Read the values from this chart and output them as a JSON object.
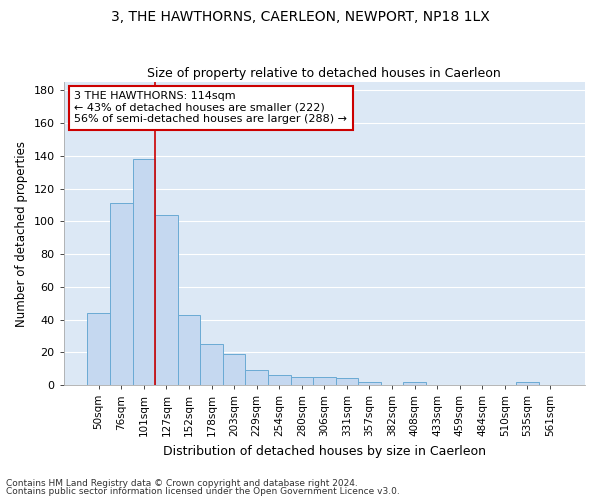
{
  "title1": "3, THE HAWTHORNS, CAERLEON, NEWPORT, NP18 1LX",
  "title2": "Size of property relative to detached houses in Caerleon",
  "xlabel": "Distribution of detached houses by size in Caerleon",
  "ylabel": "Number of detached properties",
  "footer1": "Contains HM Land Registry data © Crown copyright and database right 2024.",
  "footer2": "Contains public sector information licensed under the Open Government Licence v3.0.",
  "bar_labels": [
    "50sqm",
    "76sqm",
    "101sqm",
    "127sqm",
    "152sqm",
    "178sqm",
    "203sqm",
    "229sqm",
    "254sqm",
    "280sqm",
    "306sqm",
    "331sqm",
    "357sqm",
    "382sqm",
    "408sqm",
    "433sqm",
    "459sqm",
    "484sqm",
    "510sqm",
    "535sqm",
    "561sqm"
  ],
  "bar_values": [
    44,
    111,
    138,
    104,
    43,
    25,
    19,
    9,
    6,
    5,
    5,
    4,
    2,
    0,
    2,
    0,
    0,
    0,
    0,
    2,
    0
  ],
  "bar_color": "#c5d8f0",
  "bar_edge_color": "#6aaad4",
  "background_color": "#dce8f5",
  "grid_color": "#ffffff",
  "annotation_text": "3 THE HAWTHORNS: 114sqm\n← 43% of detached houses are smaller (222)\n56% of semi-detached houses are larger (288) →",
  "annotation_box_color": "#ffffff",
  "annotation_box_edge": "#cc0000",
  "red_line_x": 2.5,
  "ylim": [
    0,
    185
  ],
  "yticks": [
    0,
    20,
    40,
    60,
    80,
    100,
    120,
    140,
    160,
    180
  ],
  "title1_fontsize": 10,
  "title2_fontsize": 9,
  "ylabel_fontsize": 8.5,
  "xlabel_fontsize": 9,
  "footer_fontsize": 6.5,
  "tick_fontsize": 8,
  "xtick_fontsize": 7.5
}
